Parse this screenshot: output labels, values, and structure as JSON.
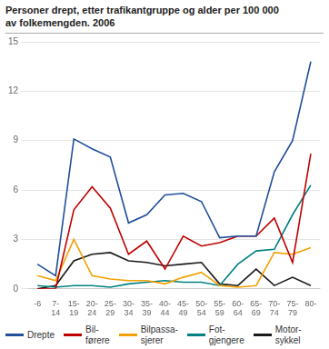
{
  "chart_data": {
    "type": "line",
    "title": "Personer drept, etter trafikantgruppe og alder per 100 000\nav folkemengden. 2006",
    "categories": [
      "-6",
      "7-\n14",
      "15-\n19",
      "20-\n24",
      "25-\n29",
      "30-\n34",
      "35-\n39",
      "40-\n44",
      "45-\n49",
      "50-\n54",
      "55-\n59",
      "60-\n64",
      "65-\n69",
      "70-\n74",
      "75-\n79",
      "80-"
    ],
    "series": [
      {
        "name": "Drepte",
        "color": "#1f4e9c",
        "values": [
          1.5,
          0.8,
          9.1,
          8.5,
          8.0,
          4.0,
          4.5,
          5.7,
          5.8,
          5.3,
          3.1,
          3.2,
          3.2,
          7.1,
          9.0,
          13.8
        ]
      },
      {
        "name": "Bil-\nførere",
        "color": "#c00000",
        "values": [
          0.0,
          0.0,
          4.8,
          6.2,
          4.9,
          2.1,
          2.9,
          1.2,
          3.2,
          2.6,
          2.8,
          3.2,
          3.2,
          4.3,
          1.6,
          8.2
        ]
      },
      {
        "name": "Bilpassa-\nsjerer",
        "color": "#f4a000",
        "values": [
          0.8,
          0.5,
          3.0,
          0.8,
          0.6,
          0.5,
          0.5,
          0.3,
          0.7,
          1.0,
          0.2,
          0.1,
          0.2,
          2.2,
          2.1,
          2.5
        ]
      },
      {
        "name": "Fot-\ngjengere",
        "color": "#008080",
        "values": [
          0.2,
          0.1,
          0.2,
          0.2,
          0.1,
          0.3,
          0.4,
          0.5,
          0.4,
          0.4,
          0.2,
          1.5,
          2.3,
          2.4,
          4.5,
          6.3
        ]
      },
      {
        "name": "Motor-\nsykkel",
        "color": "#1a1a1a",
        "values": [
          0.0,
          0.2,
          1.7,
          2.1,
          2.2,
          1.7,
          1.6,
          1.4,
          1.5,
          1.6,
          0.3,
          0.2,
          1.2,
          0.2,
          0.7,
          0.2
        ]
      }
    ],
    "ylim": [
      0,
      15
    ],
    "yticks": [
      0,
      3,
      6,
      9,
      12,
      15
    ],
    "grid": true,
    "legend": "bottom"
  }
}
